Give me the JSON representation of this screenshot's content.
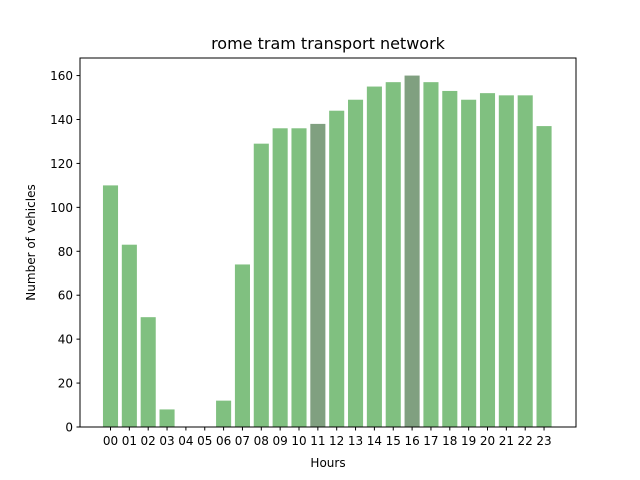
{
  "chart_data": {
    "type": "bar",
    "title": "rome tram transport network",
    "xlabel": "Hours",
    "ylabel": "Number of vehicles",
    "categories": [
      "00",
      "01",
      "02",
      "03",
      "04",
      "05",
      "06",
      "07",
      "08",
      "09",
      "10",
      "11",
      "12",
      "13",
      "14",
      "15",
      "16",
      "17",
      "18",
      "19",
      "20",
      "21",
      "22",
      "23"
    ],
    "values": [
      110,
      83,
      50,
      8,
      0,
      0,
      12,
      74,
      129,
      136,
      136,
      138,
      144,
      149,
      155,
      157,
      160,
      157,
      153,
      149,
      152,
      151,
      151,
      137
    ],
    "highlighted": [
      "11",
      "16"
    ],
    "ylim": [
      0,
      168
    ],
    "yticks": [
      0,
      20,
      40,
      60,
      80,
      100,
      120,
      140,
      160
    ],
    "grid": false,
    "colors": {
      "bar": "#80c080",
      "highlight": "#80a080"
    }
  }
}
